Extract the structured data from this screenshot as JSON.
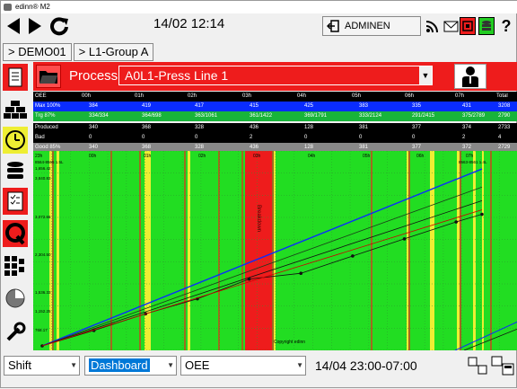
{
  "window": {
    "title": "edinn® M2"
  },
  "toolbar": {
    "datetime": "14/02 12:14",
    "user_label": "ADMINEN"
  },
  "breadcrumb": [
    "> DEMO01",
    "> L1-Group A"
  ],
  "process": {
    "label": "Process",
    "selected": "A0L1-Press Line 1"
  },
  "oee_table": {
    "columns": [
      "OEE",
      "00h",
      "01h",
      "02h",
      "03h",
      "04h",
      "05h",
      "06h",
      "07h",
      "Total"
    ],
    "rows": [
      {
        "label": "Max 100%",
        "cells": [
          "384",
          "419",
          "417",
          "415",
          "425",
          "383",
          "335",
          "431"
        ],
        "total": "3208",
        "bg": "#0a2cff"
      },
      {
        "label": "Trg 87%",
        "cells": [
          "334/334",
          "364/698",
          "363/1061",
          "361/1422",
          "369/1791",
          "333/2124",
          "291/2415",
          "375/2789"
        ],
        "total": "2790",
        "bg": "#18b43a"
      },
      {
        "label": "Produced",
        "cells": [
          "340",
          "368",
          "328",
          "436",
          "128",
          "381",
          "377",
          "374"
        ],
        "total": "2733",
        "bg": "#000000"
      },
      {
        "label": "Bad",
        "cells": [
          "0",
          "0",
          "0",
          "2",
          "0",
          "0",
          "0",
          "2"
        ],
        "total": "4",
        "bg": "#000000"
      },
      {
        "label": "Good 85%",
        "cells": [
          "340",
          "368",
          "328",
          "436",
          "128",
          "381",
          "377",
          "372"
        ],
        "total": "2729",
        "bg": "#888888"
      }
    ]
  },
  "chart_data": {
    "type": "line",
    "x_labels": [
      "23h",
      "00h",
      "01h",
      "02h",
      "03h",
      "04h",
      "05h",
      "06h",
      "07h"
    ],
    "y_ticks": [
      "3,840.83",
      "3,072.66",
      "2,304.50",
      "1,536.33",
      "1,152.25",
      "768.17"
    ],
    "x_first_labels": [
      "8564-8565 1.5L",
      "1,656.42"
    ],
    "x_last_label": "8563-8561 1.4L",
    "center_label": "Copyright edinn",
    "red_block_label": "Breakdown",
    "series": [
      {
        "name": "max",
        "color": "#0a2cff",
        "points": [
          [
            0,
            0
          ],
          [
            8.5,
            3900
          ]
        ]
      },
      {
        "name": "target",
        "color": "#1a3d1a",
        "points": [
          [
            0,
            0
          ],
          [
            8.5,
            3500
          ]
        ]
      },
      {
        "name": "target-low",
        "color": "#111111",
        "points": [
          [
            0,
            0
          ],
          [
            8.5,
            3200
          ]
        ]
      },
      {
        "name": "produced",
        "color": "#111111",
        "points": [
          [
            0,
            0
          ],
          [
            1,
            340
          ],
          [
            2,
            708
          ],
          [
            3,
            1036
          ],
          [
            4,
            1472
          ],
          [
            5,
            1600
          ],
          [
            6,
            1981
          ],
          [
            7,
            2358
          ],
          [
            8,
            2732
          ],
          [
            8.5,
            2900
          ]
        ]
      },
      {
        "name": "good",
        "color": "#cc0000",
        "points": [
          [
            0,
            0
          ],
          [
            8.5,
            3000
          ]
        ]
      }
    ],
    "colors": {
      "green": "#22dd22",
      "red": "#ee1c1c",
      "yellow": "#eeee33",
      "grid": "#7a7a7a"
    }
  },
  "bottom": {
    "range_combo": "Shift",
    "view_combo": "Dashboard",
    "metric_combo": "OEE",
    "range_text": "14/04 23:00-07:00"
  }
}
